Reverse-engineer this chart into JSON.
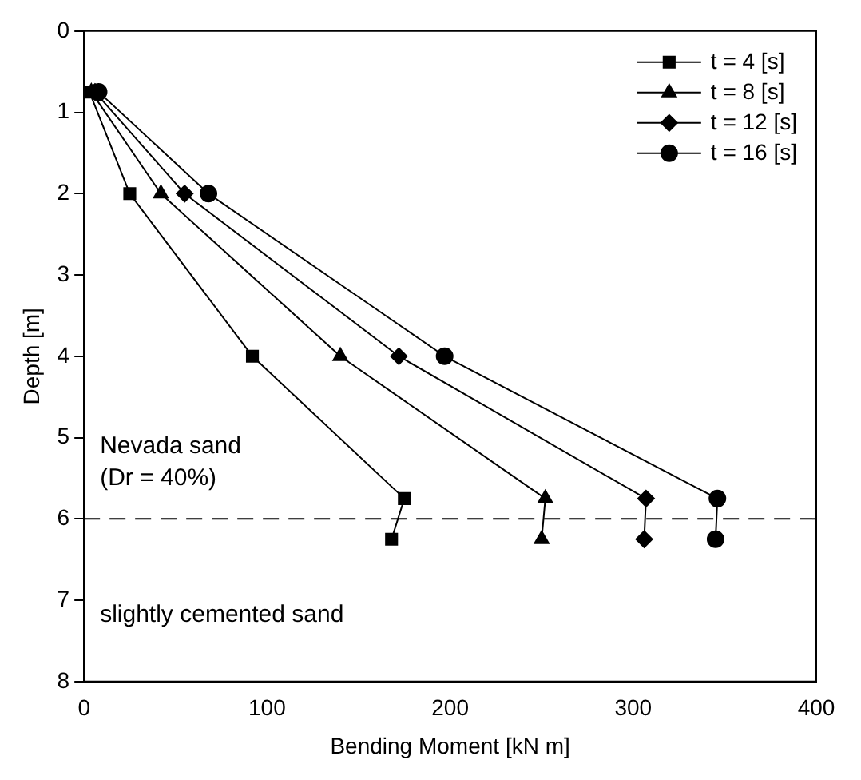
{
  "chart_data": {
    "type": "line",
    "xlabel": "Bending Moment [kN m]",
    "ylabel": "Depth [m]",
    "xlim": [
      0,
      400
    ],
    "xticks": [
      0,
      100,
      200,
      300,
      400
    ],
    "ylim": [
      8,
      0
    ],
    "yticks": [
      0,
      1,
      2,
      3,
      4,
      5,
      6,
      7,
      8
    ],
    "grid": false,
    "legend": "top right",
    "line_style": "solid",
    "series": [
      {
        "name": "t = 4 [s]",
        "color": "#000000",
        "marker": "square",
        "x": [
          3,
          25,
          92,
          175,
          168
        ],
        "values": [
          0.75,
          2,
          4,
          5.75,
          6.25
        ]
      },
      {
        "name": "t = 8 [s]",
        "color": "#000000",
        "marker": "triangle",
        "x": [
          4,
          42,
          140,
          252,
          250
        ],
        "values": [
          0.75,
          2,
          4,
          5.75,
          6.25
        ]
      },
      {
        "name": "t = 12 [s]",
        "color": "#000000",
        "marker": "diamond",
        "x": [
          6,
          55,
          172,
          307,
          306
        ],
        "values": [
          0.75,
          2,
          4,
          5.75,
          6.25
        ]
      },
      {
        "name": "t = 16 [s]",
        "color": "#000000",
        "marker": "circle",
        "x": [
          8,
          68,
          197,
          346,
          345
        ],
        "values": [
          0.75,
          2,
          4,
          5.75,
          6.25
        ]
      }
    ],
    "ref_lines": [
      {
        "axis": "y",
        "value": 6,
        "line_style": "dashed",
        "color": "#000000"
      }
    ],
    "annotations": [
      "Nevada sand\n(Dr = 40%)",
      "slightly cemented sand"
    ]
  }
}
